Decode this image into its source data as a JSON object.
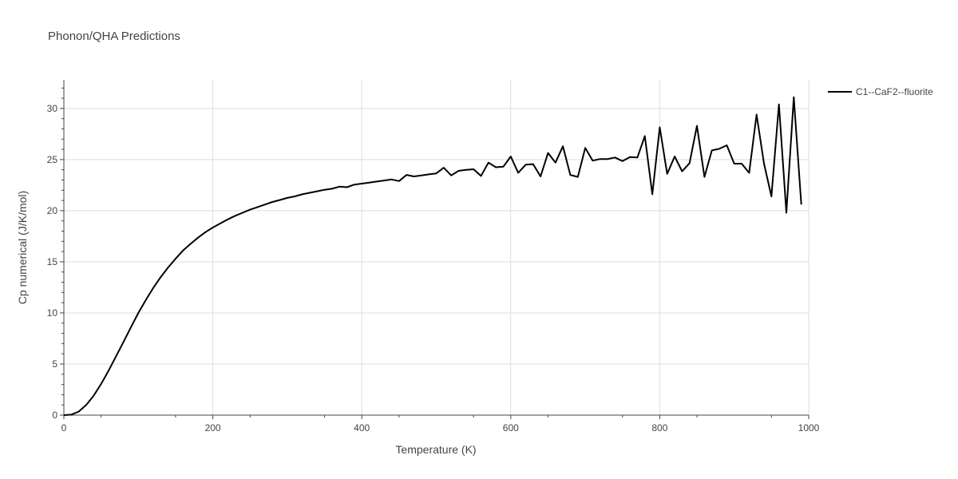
{
  "chart_data": {
    "type": "line",
    "title": "Phonon/QHA Predictions",
    "xlabel": "Temperature (K)",
    "ylabel": "Cp numerical (J/K/mol)",
    "xlim": [
      0,
      1000
    ],
    "ylim": [
      0,
      32.8
    ],
    "xticks": [
      0,
      200,
      400,
      600,
      800,
      1000
    ],
    "yticks": [
      0,
      5,
      10,
      15,
      20,
      25,
      30
    ],
    "grid": true,
    "legend_position": "top-right",
    "series": [
      {
        "name": "C1--CaF2--fluorite",
        "color": "#000000",
        "x": [
          0,
          10,
          20,
          30,
          40,
          50,
          60,
          70,
          80,
          90,
          100,
          110,
          120,
          130,
          140,
          150,
          160,
          170,
          180,
          190,
          200,
          210,
          220,
          230,
          240,
          250,
          260,
          270,
          280,
          290,
          300,
          310,
          320,
          330,
          340,
          350,
          360,
          370,
          380,
          390,
          400,
          410,
          420,
          430,
          440,
          450,
          460,
          470,
          480,
          490,
          500,
          510,
          520,
          530,
          540,
          550,
          560,
          570,
          580,
          590,
          600,
          610,
          620,
          630,
          640,
          650,
          660,
          670,
          680,
          690,
          700,
          710,
          720,
          730,
          740,
          750,
          760,
          770,
          780,
          790,
          800,
          810,
          820,
          830,
          840,
          850,
          860,
          870,
          880,
          890,
          900,
          910,
          920,
          930,
          940,
          950,
          960,
          970,
          980,
          990
        ],
        "y": [
          0,
          0.05,
          0.35,
          1,
          1.9,
          3.05,
          4.35,
          5.75,
          7.15,
          8.6,
          10,
          11.25,
          12.45,
          13.5,
          14.45,
          15.3,
          16.1,
          16.75,
          17.35,
          17.9,
          18.35,
          18.75,
          19.15,
          19.5,
          19.8,
          20.1,
          20.35,
          20.6,
          20.85,
          21.05,
          21.25,
          21.4,
          21.6,
          21.75,
          21.9,
          22.05,
          22.15,
          22.35,
          22.3,
          22.55,
          22.65,
          22.75,
          22.85,
          22.95,
          23.05,
          22.9,
          23.5,
          23.35,
          23.45,
          23.55,
          23.65,
          24.2,
          23.45,
          23.9,
          24,
          24.05,
          23.4,
          24.7,
          24.25,
          24.3,
          25.3,
          23.7,
          24.5,
          24.55,
          23.35,
          25.65,
          24.7,
          26.3,
          23.5,
          23.3,
          26.15,
          24.9,
          25.05,
          25.05,
          25.2,
          24.85,
          25.25,
          25.2,
          27.3,
          21.6,
          28.15,
          23.6,
          25.3,
          23.85,
          24.65,
          28.3,
          23.3,
          25.9,
          26.05,
          26.4,
          24.6,
          24.6,
          23.7,
          29.4,
          24.6,
          21.4,
          30.4,
          19.8,
          31.1,
          20.6
        ]
      }
    ]
  }
}
